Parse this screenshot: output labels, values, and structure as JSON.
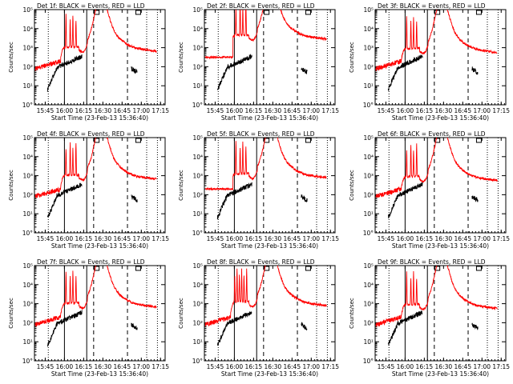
{
  "window": {
    "title": ""
  },
  "shared": {
    "xlabel": "Start Time (23-Feb-13 15:36:40)",
    "ylabel": "Counts/sec",
    "xticks": [
      "15:45",
      "16:00",
      "16:15",
      "16:30",
      "16:45",
      "17:00",
      "17:15"
    ],
    "yticks": [
      "10°",
      "10¹",
      "10²",
      "10³",
      "10⁴",
      "10⁵"
    ],
    "legend_text": "BLACK = Events, RED = LLD",
    "colors": {
      "events": "#000000",
      "lld": "#ff0000",
      "axes": "#000000",
      "background": "#ffffff"
    }
  },
  "chart_data": [
    {
      "type": "line",
      "title": "Det 1f: BLACK = Events, RED = LLD",
      "xlabel": "Start Time (23-Feb-13 15:36:40)",
      "ylabel": "Counts/sec",
      "ylim": [
        1,
        100000
      ],
      "yscale": "log",
      "series": [
        {
          "name": "Events",
          "color": "#000000"
        },
        {
          "name": "LLD",
          "color": "#ff0000"
        }
      ]
    },
    {
      "type": "line",
      "title": "Det 2f: BLACK = Events, RED = LLD",
      "xlabel": "Start Time (23-Feb-13 15:36:40)",
      "ylabel": "Counts/sec",
      "ylim": [
        1,
        100000
      ],
      "yscale": "log",
      "series": [
        {
          "name": "Events",
          "color": "#000000"
        },
        {
          "name": "LLD",
          "color": "#ff0000"
        }
      ]
    },
    {
      "type": "line",
      "title": "Det 3f: BLACK = Events, RED = LLD",
      "xlabel": "Start Time (23-Feb-13 15:36:40)",
      "ylabel": "Counts/sec",
      "ylim": [
        1,
        100000
      ],
      "yscale": "log",
      "series": [
        {
          "name": "Events",
          "color": "#000000"
        },
        {
          "name": "LLD",
          "color": "#ff0000"
        }
      ]
    },
    {
      "type": "line",
      "title": "Det 4f: BLACK = Events, RED = LLD",
      "xlabel": "Start Time (23-Feb-13 15:36:40)",
      "ylabel": "Counts/sec",
      "ylim": [
        1,
        100000
      ],
      "yscale": "log",
      "series": [
        {
          "name": "Events",
          "color": "#000000"
        },
        {
          "name": "LLD",
          "color": "#ff0000"
        }
      ]
    },
    {
      "type": "line",
      "title": "Det 5f: BLACK = Events, RED = LLD",
      "xlabel": "Start Time (23-Feb-13 15:36:40)",
      "ylabel": "Counts/sec",
      "ylim": [
        1,
        100000
      ],
      "yscale": "log",
      "series": [
        {
          "name": "Events",
          "color": "#000000"
        },
        {
          "name": "LLD",
          "color": "#ff0000"
        }
      ]
    },
    {
      "type": "line",
      "title": "Det 6f: BLACK = Events, RED = LLD",
      "xlabel": "Start Time (23-Feb-13 15:36:40)",
      "ylabel": "Counts/sec",
      "ylim": [
        1,
        100000
      ],
      "yscale": "log",
      "series": [
        {
          "name": "Events",
          "color": "#000000"
        },
        {
          "name": "LLD",
          "color": "#ff0000"
        }
      ]
    },
    {
      "type": "line",
      "title": "Det 7f: BLACK = Events, RED = LLD",
      "xlabel": "Start Time (23-Feb-13 15:36:40)",
      "ylabel": "Counts/sec",
      "ylim": [
        1,
        100000
      ],
      "yscale": "log",
      "series": [
        {
          "name": "Events",
          "color": "#000000"
        },
        {
          "name": "LLD",
          "color": "#ff0000"
        }
      ]
    },
    {
      "type": "line",
      "title": "Det 8f: BLACK = Events, RED = LLD",
      "xlabel": "Start Time (23-Feb-13 15:36:40)",
      "ylabel": "Counts/sec",
      "ylim": [
        1,
        100000
      ],
      "yscale": "log",
      "series": [
        {
          "name": "Events",
          "color": "#000000"
        },
        {
          "name": "LLD",
          "color": "#ff0000"
        }
      ]
    },
    {
      "type": "line",
      "title": "Det 9f: BLACK = Events, RED = LLD",
      "xlabel": "Start Time (23-Feb-13 15:36:40)",
      "ylabel": "Counts/sec",
      "ylim": [
        1,
        100000
      ],
      "yscale": "log",
      "series": [
        {
          "name": "Events",
          "color": "#000000"
        },
        {
          "name": "LLD",
          "color": "#ff0000"
        }
      ]
    }
  ]
}
